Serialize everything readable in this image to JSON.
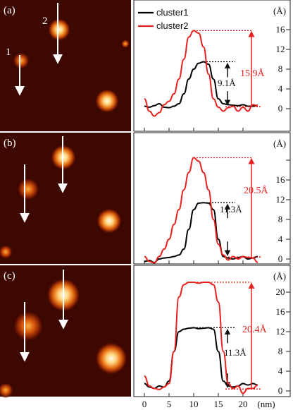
{
  "legend": [
    {
      "label": "cluster1",
      "color": "#000000"
    },
    {
      "label": "cluster2",
      "color": "#e8211f"
    }
  ],
  "colors": {
    "cluster1": "#000000",
    "cluster2": "#e8211f",
    "axis": "#222222"
  },
  "x_axis": {
    "ticks": [
      "0",
      "5",
      "10",
      "15",
      "20"
    ],
    "unit": "(nm)"
  },
  "panels": [
    {
      "label": "(a)",
      "image_labels": [
        "1",
        "2"
      ],
      "y_unit": "(Å)",
      "y_ticks": [
        "0",
        "4",
        "8",
        "12",
        "16"
      ],
      "annot_black": "9.1Å",
      "annot_red": "15.9Å"
    },
    {
      "label": "(b)",
      "image_labels": [],
      "y_unit": "(Å)",
      "y_ticks": [
        "0",
        "4",
        "8",
        "12",
        "16"
      ],
      "annot_black": "11.3Å",
      "annot_red": "20.5Å"
    },
    {
      "label": "(c)",
      "image_labels": [],
      "y_unit": "(Å)",
      "y_ticks": [
        "0",
        "4",
        "8",
        "12",
        "16",
        "20"
      ],
      "annot_black": "11.3Å",
      "annot_red": "20.4Å"
    }
  ],
  "chart_data": [
    {
      "type": "line",
      "x_unit": "nm",
      "y_unit": "Å",
      "ylim": [
        -1.5,
        17.5
      ],
      "series": [
        {
          "name": "cluster1",
          "x": [
            0,
            1,
            2,
            3,
            4,
            5,
            6,
            7,
            8,
            9,
            10,
            11,
            12,
            13,
            14,
            15,
            16,
            17,
            18,
            19,
            20,
            21,
            22,
            23
          ],
          "y": [
            0.5,
            0.3,
            0.6,
            1.0,
            0.3,
            0.2,
            0.5,
            1.0,
            3.0,
            6.0,
            8.0,
            9.2,
            9.5,
            9.0,
            6.0,
            2.0,
            1.0,
            0.8,
            0.7,
            0.6,
            0.8,
            0.5,
            0.5,
            0.7
          ]
        },
        {
          "name": "cluster2",
          "x": [
            0,
            1,
            2,
            3,
            4,
            5,
            6,
            7,
            8,
            9,
            10,
            11,
            12,
            13,
            14,
            15,
            16,
            17,
            18,
            19,
            20,
            21,
            22,
            23
          ],
          "y": [
            2.0,
            -0.5,
            -1.5,
            -0.8,
            0.8,
            1.5,
            3.0,
            6.0,
            10.0,
            14.5,
            15.8,
            15.3,
            12.5,
            7.0,
            2.0,
            0.3,
            -0.5,
            0.2,
            0.5,
            -0.5,
            0.3,
            -0.5,
            0.8,
            0.6
          ]
        }
      ]
    },
    {
      "type": "line",
      "x_unit": "nm",
      "y_unit": "Å",
      "ylim": [
        -1.5,
        20.5
      ],
      "series": [
        {
          "name": "cluster1",
          "x": [
            0,
            1,
            2,
            3,
            4,
            5,
            6,
            7,
            8,
            9,
            10,
            11,
            12,
            13,
            14,
            15,
            16,
            17,
            18,
            19,
            20,
            21,
            22,
            23
          ],
          "y": [
            -0.5,
            -0.3,
            -0.7,
            0,
            0.2,
            0.3,
            0.5,
            0.8,
            2.0,
            6.0,
            10.0,
            11.3,
            11.4,
            11.3,
            10.0,
            4.0,
            0.5,
            0.2,
            0,
            0.3,
            0.5,
            0,
            0.2,
            0.5
          ]
        },
        {
          "name": "cluster2",
          "x": [
            0,
            1,
            2,
            3,
            4,
            5,
            6,
            7,
            8,
            9,
            10,
            11,
            12,
            13,
            14,
            15,
            16,
            17,
            18,
            19,
            20,
            21,
            22,
            23
          ],
          "y": [
            0.5,
            -0.5,
            -0.8,
            0.5,
            2.0,
            4.0,
            7.0,
            10.0,
            14.0,
            17.5,
            20.5,
            19.8,
            17.5,
            14.0,
            8.0,
            3.0,
            0.8,
            -0.2,
            0.5,
            0,
            0.5,
            0.3,
            0.2,
            -0.7
          ]
        }
      ]
    },
    {
      "type": "line",
      "x_unit": "nm",
      "y_unit": "Å",
      "ylim": [
        -1.5,
        23.0
      ],
      "series": [
        {
          "name": "cluster1",
          "x": [
            0,
            1,
            2,
            3,
            4,
            5,
            6,
            7,
            8,
            9,
            10,
            11,
            12,
            13,
            14,
            15,
            16,
            17,
            18,
            19,
            20,
            21,
            22,
            23
          ],
          "y": [
            1.5,
            0.8,
            0.5,
            1.0,
            0.8,
            2.0,
            8.0,
            12.0,
            12.5,
            12.7,
            12.8,
            12.6,
            12.7,
            12.8,
            12.5,
            8.0,
            2.0,
            1.0,
            0.8,
            1.0,
            1.5,
            1.2,
            1.5,
            1.2
          ]
        },
        {
          "name": "cluster2",
          "x": [
            0,
            1,
            2,
            3,
            4,
            5,
            6,
            7,
            8,
            9,
            10,
            11,
            12,
            13,
            14,
            15,
            16,
            17,
            18,
            19,
            20,
            21,
            22,
            23
          ],
          "y": [
            3.0,
            1.0,
            0.5,
            0.3,
            0.8,
            1.5,
            8.0,
            19.0,
            21.5,
            22.0,
            22.0,
            21.8,
            22.0,
            22.0,
            21.5,
            18.0,
            8.0,
            1.5,
            0.5,
            1.0,
            -0.5,
            0.5,
            0.5,
            1.2
          ]
        }
      ]
    }
  ]
}
